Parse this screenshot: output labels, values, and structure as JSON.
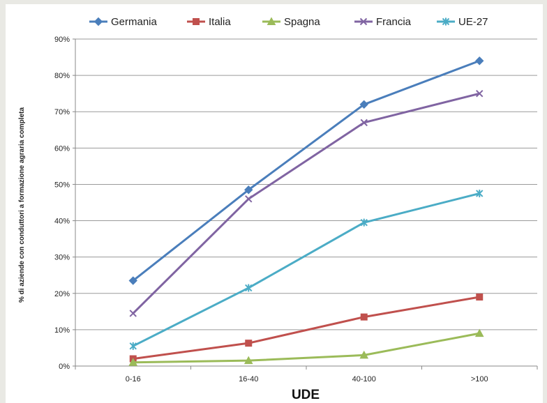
{
  "chart_data": {
    "type": "line",
    "categories": [
      "0-16",
      "16-40",
      "40-100",
      ">100"
    ],
    "series": [
      {
        "name": "Germania",
        "values": [
          23.5,
          48.5,
          72,
          84
        ],
        "color": "#4a7ebb",
        "marker": "diamond"
      },
      {
        "name": "Italia",
        "values": [
          2,
          6.3,
          13.5,
          19
        ],
        "color": "#c0504d",
        "marker": "square"
      },
      {
        "name": "Spagna",
        "values": [
          1,
          1.5,
          3,
          9
        ],
        "color": "#9bbb59",
        "marker": "triangle"
      },
      {
        "name": "Francia",
        "values": [
          14.5,
          46,
          67,
          75
        ],
        "color": "#8064a2",
        "marker": "x"
      },
      {
        "name": "UE-27",
        "values": [
          5.5,
          21.5,
          39.5,
          47.5
        ],
        "color": "#4bacc6",
        "marker": "star"
      }
    ],
    "yticks": [
      "0%",
      "10%",
      "20%",
      "30%",
      "40%",
      "50%",
      "60%",
      "70%",
      "80%",
      "90%"
    ],
    "ylim": [
      0,
      90
    ],
    "xlabel": "UDE",
    "ylabel": "% di aziende con conduttori a formazione agraria completa",
    "grid": true,
    "legend_position": "top"
  }
}
